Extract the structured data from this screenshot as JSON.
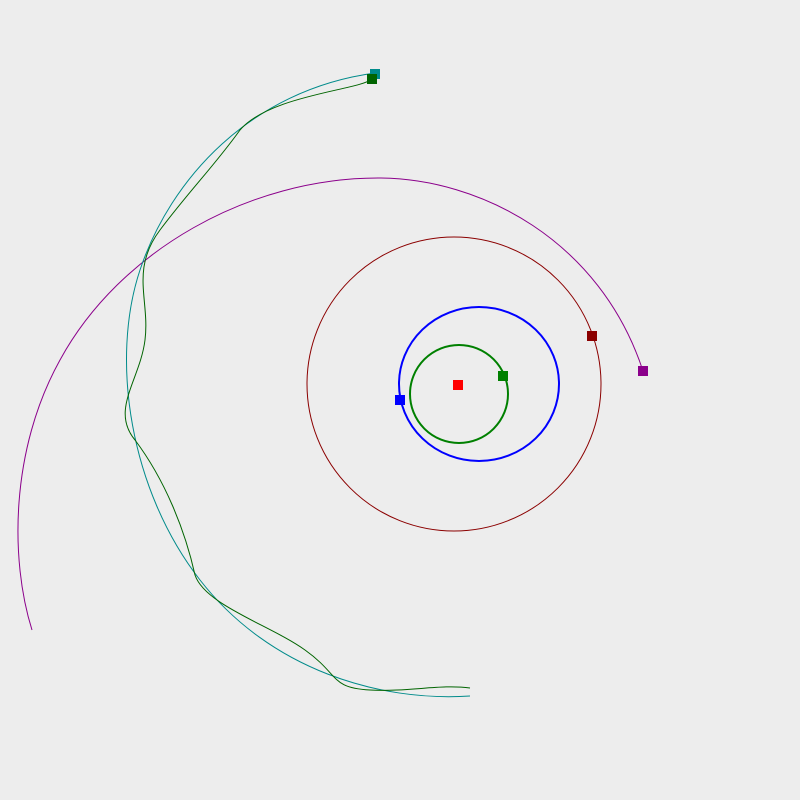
{
  "scene": {
    "background": "#ededed",
    "star": {
      "name": "sun",
      "color": "#ff0000"
    },
    "bodies": [
      {
        "id": "planet-1",
        "color": "#008000",
        "trail": "closed-orbit"
      },
      {
        "id": "planet-2",
        "color": "#0000ff",
        "trail": "closed-orbit"
      },
      {
        "id": "planet-3",
        "color": "#8b0000",
        "trail": "closed-orbit"
      },
      {
        "id": "planet-4",
        "color": "#8b008b",
        "trail": "open-arc"
      },
      {
        "id": "planet-5",
        "color": "#008b8b",
        "trail": "open-arc"
      },
      {
        "id": "moon-5",
        "color": "#006400",
        "trail": "wobbling-arc"
      }
    ]
  }
}
